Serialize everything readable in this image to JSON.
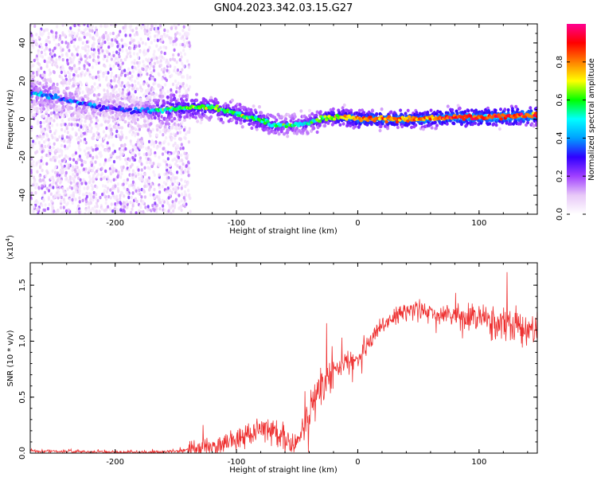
{
  "figure": {
    "title": "GN04.2023.342.03.15.G27"
  },
  "chart_data": [
    {
      "type": "heatmap",
      "xlabel": "Height of straight line (km)",
      "ylabel": "Frequency (Hz)",
      "xlim": [
        -270,
        148
      ],
      "ylim": [
        -50,
        50
      ],
      "xticks": [
        "-200",
        "-100",
        "0",
        "100"
      ],
      "xtick_values": [
        -200,
        -100,
        0,
        100
      ],
      "yticks": [
        "40",
        "20",
        "0",
        "-20",
        "-40"
      ],
      "ytick_values": [
        40,
        20,
        0,
        -20,
        -40
      ],
      "colorbar": {
        "label": "Normalized spectral amplitude",
        "ticks": [
          "0.0",
          "0.2",
          "0.4",
          "0.6",
          "0.8"
        ],
        "tick_values": [
          0.0,
          0.2,
          0.4,
          0.6,
          0.8
        ],
        "range": [
          0,
          1
        ],
        "colormap": [
          "#ffffff",
          "#e8c8f8",
          "#a040ff",
          "#3000ff",
          "#00a0ff",
          "#00ffff",
          "#00ff00",
          "#ffff00",
          "#ff8000",
          "#ff0000",
          "#ff0090"
        ]
      },
      "ridge": {
        "x": [
          -270,
          -240,
          -210,
          -180,
          -160,
          -140,
          -120,
          -100,
          -85,
          -70,
          -55,
          -40,
          -25,
          -10,
          0,
          20,
          50,
          80,
          110,
          148
        ],
        "frequency": [
          14,
          10,
          6,
          4,
          5,
          6,
          6,
          3,
          0,
          -3,
          -3,
          -2,
          1,
          1,
          0,
          0,
          0,
          1,
          1,
          2
        ],
        "amplitude": [
          0.35,
          0.3,
          0.25,
          0.25,
          0.5,
          0.55,
          0.55,
          0.5,
          0.55,
          0.5,
          0.45,
          0.45,
          0.6,
          0.7,
          0.75,
          0.75,
          0.75,
          0.8,
          0.85,
          0.8
        ]
      },
      "scatter_noise_region": [
        -270,
        -150
      ]
    },
    {
      "type": "line",
      "xlabel": "Height of straight line (km)",
      "ylabel": "SNR (10 * v/v)",
      "scale_label": "(x10",
      "scale_exp": "4",
      "scale_close": ")",
      "xlim": [
        -270,
        148
      ],
      "ylim": [
        0,
        1.7
      ],
      "xticks": [
        "-200",
        "-100",
        "0",
        "100"
      ],
      "xtick_values": [
        -200,
        -100,
        0,
        100
      ],
      "yticks": [
        "0.0",
        "0.5",
        "1.0",
        "1.5"
      ],
      "ytick_values": [
        0.0,
        0.5,
        1.0,
        1.5
      ],
      "color": "#ee3030",
      "envelope": {
        "x": [
          -270,
          -200,
          -160,
          -140,
          -120,
          -100,
          -90,
          -80,
          -70,
          -60,
          -55,
          -50,
          -40,
          -30,
          -25,
          -20,
          -10,
          0,
          10,
          20,
          30,
          40,
          50,
          60,
          70,
          80,
          90,
          100,
          110,
          120,
          130,
          140,
          148
        ],
        "snr": [
          0.02,
          0.01,
          0.01,
          0.03,
          0.06,
          0.12,
          0.17,
          0.22,
          0.23,
          0.15,
          0.05,
          0.1,
          0.35,
          0.55,
          0.65,
          0.75,
          0.82,
          0.85,
          1.0,
          1.12,
          1.22,
          1.27,
          1.3,
          1.25,
          1.23,
          1.22,
          1.2,
          1.2,
          1.18,
          1.16,
          1.12,
          1.1,
          1.08
        ]
      }
    }
  ]
}
